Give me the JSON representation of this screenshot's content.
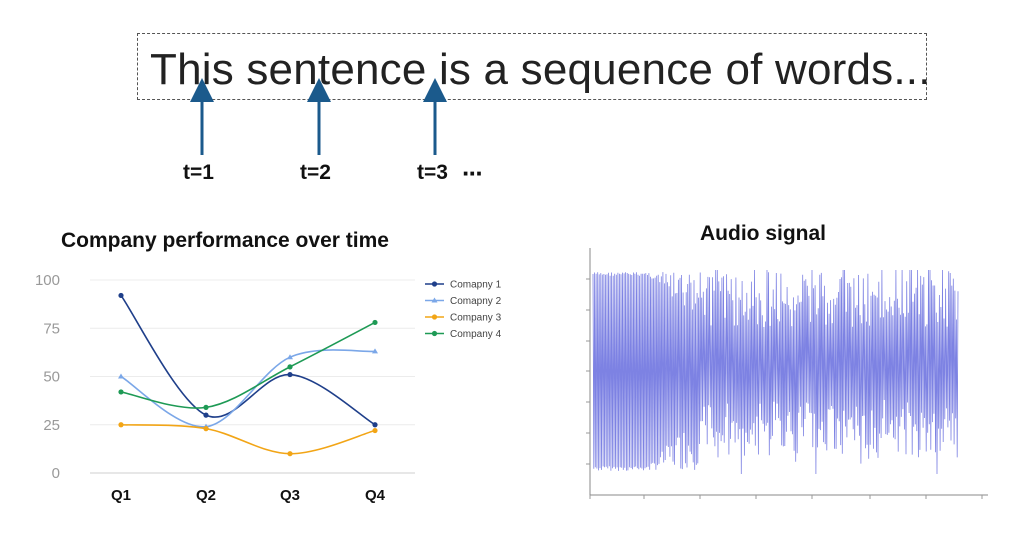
{
  "sequence": {
    "sentence": "This sentence is a sequence of words...",
    "timesteps": [
      "t=1",
      "t=2",
      "t=3"
    ],
    "ellipsis": "···",
    "arrow_color": "#1b5a8c"
  },
  "chart_data": [
    {
      "type": "line",
      "title": "Company performance over time",
      "categories": [
        "Q1",
        "Q2",
        "Q3",
        "Q4"
      ],
      "ylim": [
        0,
        100
      ],
      "yticks": [
        0,
        25,
        50,
        75,
        100
      ],
      "grid": true,
      "legend": "right",
      "series": [
        {
          "name": "Comapny 1",
          "values": [
            92,
            30,
            51,
            25
          ],
          "color": "#1f3f8a",
          "marker": "circle"
        },
        {
          "name": "Comapny 2",
          "values": [
            50,
            24,
            60,
            63
          ],
          "color": "#7ba7e8",
          "marker": "triangle"
        },
        {
          "name": "Company 3",
          "values": [
            25,
            23,
            10,
            22
          ],
          "color": "#f2a516",
          "marker": "circle"
        },
        {
          "name": "Company 4",
          "values": [
            42,
            34,
            55,
            78
          ],
          "color": "#1e9a55",
          "marker": "circle"
        }
      ]
    },
    {
      "type": "line",
      "title": "Audio signal",
      "grid": false,
      "color": "#6f74e0"
    }
  ]
}
